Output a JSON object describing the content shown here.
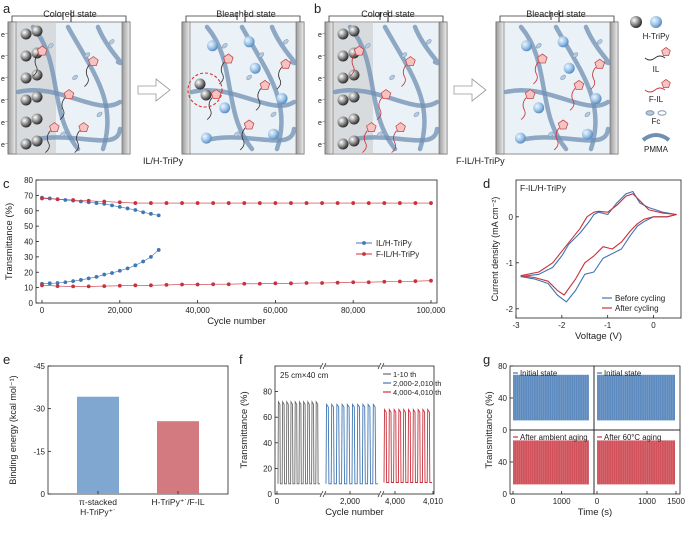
{
  "panels": {
    "a": {
      "letter": "a",
      "left_title": "Colored state",
      "right_title": "Bleached state",
      "caption": "IL/H-TriPy",
      "electron": "e⁻"
    },
    "b": {
      "letter": "b",
      "left_title": "Colored state",
      "right_title": "Bleached state",
      "caption": "F-IL/H-TriPy",
      "electron": "e⁻"
    },
    "legend": {
      "items": [
        "H-TriPy",
        "IL",
        "F-IL",
        "Fc",
        "PMMA"
      ]
    },
    "c": {
      "letter": "c"
    },
    "d": {
      "letter": "d"
    },
    "e": {
      "letter": "e"
    },
    "f": {
      "letter": "f"
    },
    "g": {
      "letter": "g"
    }
  },
  "colors": {
    "blue": "#3f76b4",
    "red": "#c8323d",
    "light_blue": "#7fa7cf",
    "light_red": "#d27a7f",
    "gray": "#6b6b6b"
  },
  "chart_data": [
    {
      "id": "c",
      "type": "scatter",
      "xlabel": "Cycle number",
      "ylabel": "Transmittance (%)",
      "xlim": [
        0,
        100000
      ],
      "ylim": [
        0,
        80
      ],
      "xticks": [
        0,
        20000,
        40000,
        60000,
        80000,
        100000
      ],
      "xtick_labels": [
        "0",
        "20,000",
        "40,000",
        "60,000",
        "80,000",
        "100,000"
      ],
      "yticks": [
        0,
        10,
        20,
        30,
        40,
        50,
        60,
        70,
        80
      ],
      "ytick_labels": [
        "0",
        "10",
        "20",
        "30",
        "40",
        "50",
        "60",
        "70",
        "80"
      ],
      "legend_position": "center-right",
      "series": [
        {
          "name": "IL/H-TriPy",
          "color": "#3f76b4",
          "role": "colored",
          "x": [
            0,
            2000,
            4000,
            6000,
            8000,
            10000,
            12000,
            14000,
            16000,
            18000,
            20000,
            22000,
            24000,
            26000,
            28000,
            30000
          ],
          "y": [
            68.5,
            68,
            67.5,
            67,
            66.6,
            66,
            65.5,
            65,
            64.5,
            63.5,
            62.5,
            61.5,
            60.5,
            59,
            58,
            57
          ]
        },
        {
          "name": "IL/H-TriPy",
          "color": "#3f76b4",
          "role": "bleached",
          "x": [
            0,
            2000,
            4000,
            6000,
            8000,
            10000,
            12000,
            14000,
            16000,
            18000,
            20000,
            22000,
            24000,
            26000,
            28000,
            30000
          ],
          "y": [
            12.5,
            12.8,
            13,
            13.5,
            14.2,
            15,
            16,
            17,
            18.5,
            19.5,
            21,
            22.5,
            24.5,
            27,
            30,
            34.5
          ]
        },
        {
          "name": "F-IL/H-TriPy",
          "color": "#c8323d",
          "role": "colored",
          "x": [
            0,
            4000,
            8000,
            12000,
            16000,
            20000,
            24000,
            28000,
            32000,
            36000,
            40000,
            44000,
            48000,
            52000,
            56000,
            60000,
            64000,
            68000,
            72000,
            76000,
            80000,
            84000,
            88000,
            92000,
            96000,
            100000
          ],
          "y": [
            68,
            67.5,
            67,
            66.5,
            66,
            65.5,
            65,
            65,
            65,
            65,
            65,
            65,
            65,
            65,
            65,
            65,
            65,
            65,
            65,
            65,
            65,
            65,
            65,
            65,
            65,
            65
          ]
        },
        {
          "name": "F-IL/H-TriPy",
          "color": "#c8323d",
          "role": "bleached",
          "x": [
            0,
            4000,
            8000,
            12000,
            16000,
            20000,
            24000,
            28000,
            32000,
            36000,
            40000,
            44000,
            48000,
            52000,
            56000,
            60000,
            64000,
            68000,
            72000,
            76000,
            80000,
            84000,
            88000,
            92000,
            96000,
            100000
          ],
          "y": [
            11.5,
            11,
            10.8,
            10.8,
            11,
            11.2,
            11.5,
            11.5,
            11.8,
            12,
            12,
            12.2,
            12.2,
            12.5,
            12.5,
            12.8,
            12.8,
            13,
            13,
            13.2,
            13.5,
            13.5,
            13.8,
            14,
            14.2,
            14.5
          ]
        }
      ]
    },
    {
      "id": "d",
      "type": "line",
      "title": "F-IL/H-TriPy",
      "xlabel": "Voltage (V)",
      "ylabel": "Current density (mA cm⁻²)",
      "xlim": [
        -3,
        0.6
      ],
      "ylim": [
        -2.2,
        0.8
      ],
      "xticks": [
        -3,
        -2,
        -1,
        0
      ],
      "xtick_labels": [
        "-3",
        "-2",
        "-1",
        "0"
      ],
      "yticks": [
        -2,
        -1,
        0
      ],
      "ytick_labels": [
        "-2",
        "-1",
        "0"
      ],
      "legend_position": "bottom-right",
      "series": [
        {
          "name": "Before cycling",
          "color": "#3f76b4",
          "x": [
            -2.9,
            -2.5,
            -2.2,
            -2.0,
            -1.85,
            -1.6,
            -1.4,
            -1.3,
            -1.2,
            -1.0,
            -0.8,
            -0.6,
            -0.45,
            -0.3,
            -0.1,
            0.2,
            0.5,
            0.3,
            0.0,
            -0.2,
            -0.35,
            -0.5,
            -0.7,
            -0.9,
            -1.1,
            -1.3,
            -1.5,
            -1.7,
            -1.9,
            -2.1,
            -2.3,
            -2.6,
            -2.9
          ],
          "y": [
            -1.3,
            -1.25,
            -1.1,
            -0.85,
            -0.6,
            -0.35,
            -0.1,
            0.05,
            0.1,
            0.05,
            0.3,
            0.5,
            0.55,
            0.3,
            0.2,
            0.1,
            0.05,
            0.0,
            0.0,
            -0.1,
            -0.2,
            -0.4,
            -0.7,
            -0.8,
            -0.9,
            -1.2,
            -1.25,
            -1.6,
            -1.85,
            -1.7,
            -1.45,
            -1.35,
            -1.3
          ]
        },
        {
          "name": "After cycling",
          "color": "#c8323d",
          "x": [
            -2.9,
            -2.5,
            -2.2,
            -2.0,
            -1.8,
            -1.6,
            -1.45,
            -1.3,
            -1.2,
            -1.0,
            -0.8,
            -0.6,
            -0.45,
            -0.3,
            -0.1,
            0.2,
            0.5,
            0.3,
            0.0,
            -0.2,
            -0.35,
            -0.5,
            -0.7,
            -0.9,
            -1.1,
            -1.3,
            -1.5,
            -1.7,
            -1.95,
            -2.1,
            -2.3,
            -2.6,
            -2.9
          ],
          "y": [
            -1.28,
            -1.2,
            -1.0,
            -0.75,
            -0.5,
            -0.25,
            0.0,
            0.1,
            0.12,
            0.1,
            0.25,
            0.45,
            0.5,
            0.35,
            0.15,
            0.08,
            0.05,
            0.0,
            0.0,
            -0.05,
            -0.15,
            -0.3,
            -0.55,
            -0.7,
            -0.65,
            -0.85,
            -1.0,
            -1.35,
            -1.7,
            -1.6,
            -1.4,
            -1.32,
            -1.28
          ]
        }
      ]
    },
    {
      "id": "e",
      "type": "bar",
      "ylabel": "Binding energy (kcal mol⁻¹)",
      "ylim": [
        0,
        -45
      ],
      "yticks": [
        0,
        -15,
        -30,
        -45
      ],
      "ytick_labels": [
        "0",
        "-15",
        "-30",
        "-45"
      ],
      "categories": [
        "π-stacked\nH-TriPy⁺˙",
        "H-TriPy⁺˙/F-IL"
      ],
      "values": [
        -34.2,
        -25.6
      ],
      "colors": [
        "#7fa7cf",
        "#d27a7f"
      ]
    },
    {
      "id": "f",
      "type": "line",
      "annotation": "25 cm×40 cm",
      "xlabel": "Cycle number",
      "ylabel": "Transmittance (%)",
      "ylim": [
        0,
        100
      ],
      "yticks": [
        0,
        20,
        40,
        60,
        80
      ],
      "ytick_labels": [
        "0",
        "20",
        "40",
        "60",
        "80"
      ],
      "xtick_labels": [
        "0",
        "2,000",
        "4,000",
        "4,010"
      ],
      "legend_position": "top-right",
      "series": [
        {
          "name": "1-10 th",
          "color": "#6b6b6b",
          "cycles": 10,
          "max": 72,
          "min": 8
        },
        {
          "name": "2,000-2,010 th",
          "color": "#3f76b4",
          "cycles": 10,
          "max": 70,
          "min": 8
        },
        {
          "name": "4,000-4,010 th",
          "color": "#c8323d",
          "cycles": 10,
          "max": 66,
          "min": 9
        }
      ]
    },
    {
      "id": "g",
      "type": "area",
      "xlabel": "Time (s)",
      "ylabel": "Transmittance (%)",
      "ylim": [
        0,
        80
      ],
      "yticks": [
        0,
        40,
        80
      ],
      "ytick_labels": [
        "0",
        "40",
        "80"
      ],
      "xticks": [
        0,
        1000,
        1500
      ],
      "xtick_labels": [
        "0",
        "1000",
        "0",
        "1000",
        "1500"
      ],
      "subplots": [
        {
          "name": "Initial state",
          "color": "#3f76b4",
          "max": 69,
          "min": 12
        },
        {
          "name": "Initial state",
          "color": "#3f76b4",
          "max": 69,
          "min": 12
        },
        {
          "name": "After ambient aging",
          "color": "#c8323d",
          "max": 67,
          "min": 12
        },
        {
          "name": "After 60°C aging",
          "color": "#c8323d",
          "max": 67,
          "min": 12
        }
      ]
    }
  ]
}
